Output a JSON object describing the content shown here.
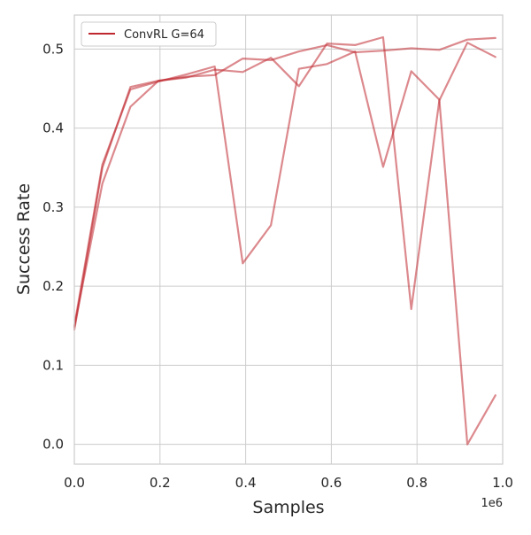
{
  "chart_data": {
    "type": "line",
    "title": "",
    "xlabel": "Samples",
    "ylabel": "Success Rate",
    "x_offset_label": "1e6",
    "xlim": [
      0,
      1.0
    ],
    "ylim": [
      -0.025,
      0.543
    ],
    "x_ticks": [
      0.0,
      0.2,
      0.4,
      0.6,
      0.8,
      1.0
    ],
    "x_tick_labels": [
      "0.0",
      "0.2",
      "0.4",
      "0.6",
      "0.8",
      "1.0"
    ],
    "y_ticks": [
      0.0,
      0.1,
      0.2,
      0.3,
      0.4,
      0.5
    ],
    "y_tick_labels": [
      "0.0",
      "0.1",
      "0.2",
      "0.3",
      "0.4",
      "0.5"
    ],
    "grid": true,
    "legend_position": "top-left",
    "legend": [
      {
        "label": "ConvRL G=64",
        "color": "#c0282f"
      }
    ],
    "series": [
      {
        "color": "#c0282f",
        "x": [
          0.0,
          0.0655,
          0.131,
          0.1966,
          0.2621,
          0.3277,
          0.3932,
          0.4588,
          0.5243,
          0.5898,
          0.6554,
          0.7209,
          0.7865,
          0.852,
          0.9175,
          0.9831
        ],
        "y": [
          0.15,
          0.354,
          0.449,
          0.459,
          0.468,
          0.478,
          0.229,
          0.277,
          0.475,
          0.481,
          0.497,
          0.351,
          0.472,
          0.436,
          0.0,
          0.062
        ]
      },
      {
        "color": "#c0282f",
        "x": [
          0.0,
          0.0655,
          0.131,
          0.1966,
          0.2621,
          0.3277,
          0.3932,
          0.4588,
          0.5243,
          0.5898,
          0.6554,
          0.7209,
          0.7865,
          0.852,
          0.9175,
          0.9831
        ],
        "y": [
          0.145,
          0.35,
          0.452,
          0.46,
          0.465,
          0.467,
          0.488,
          0.486,
          0.497,
          0.505,
          0.496,
          0.498,
          0.501,
          0.499,
          0.512,
          0.514
        ]
      },
      {
        "color": "#c0282f",
        "x": [
          0.0,
          0.0655,
          0.131,
          0.1966,
          0.2621,
          0.3277,
          0.3932,
          0.4588,
          0.5243,
          0.5898,
          0.6554,
          0.7209,
          0.7865,
          0.852,
          0.9175,
          0.9831
        ],
        "y": [
          0.148,
          0.33,
          0.427,
          0.46,
          0.464,
          0.474,
          0.471,
          0.489,
          0.453,
          0.507,
          0.505,
          0.515,
          0.171,
          0.435,
          0.508,
          0.49
        ]
      }
    ]
  }
}
